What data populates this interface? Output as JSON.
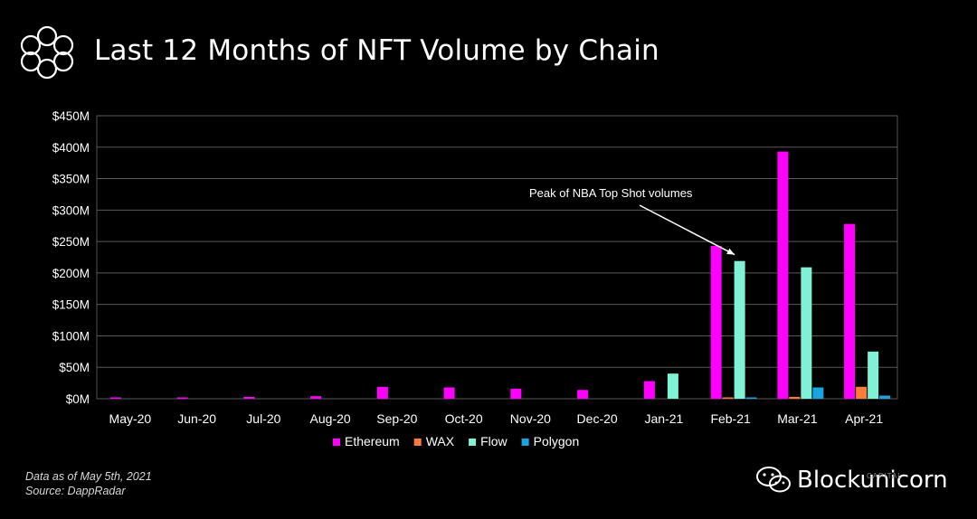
{
  "header": {
    "title": "Last 12 Months of NFT Volume by Chain"
  },
  "chart_data": {
    "type": "bar",
    "title": "Last 12 Months of NFT Volume by Chain",
    "categories": [
      "May-20",
      "Jun-20",
      "Jul-20",
      "Aug-20",
      "Sep-20",
      "Oct-20",
      "Nov-20",
      "Dec-20",
      "Jan-21",
      "Feb-21",
      "Mar-21",
      "Apr-21"
    ],
    "series": [
      {
        "name": "Ethereum",
        "color": "#ff00ff",
        "values": [
          1,
          1,
          3,
          4,
          19,
          18,
          16,
          14,
          28,
          243,
          393,
          278
        ]
      },
      {
        "name": "WAX",
        "color": "#ff7b39",
        "values": [
          0,
          0,
          0,
          0,
          0,
          0,
          0,
          0,
          0,
          2,
          3,
          19
        ]
      },
      {
        "name": "Flow",
        "color": "#7ff1d4",
        "values": [
          0,
          0,
          0,
          0,
          0,
          0,
          0,
          0,
          40,
          219,
          209,
          75
        ]
      },
      {
        "name": "Polygon",
        "color": "#1ba3e0",
        "values": [
          0,
          0,
          0,
          0,
          0,
          0,
          0,
          0,
          0,
          1,
          18,
          5
        ]
      }
    ],
    "ylim": [
      0,
      450
    ],
    "yticks": [
      "$0M",
      "$50M",
      "$100M",
      "$150M",
      "$200M",
      "$250M",
      "$300M",
      "$350M",
      "$400M",
      "$450M"
    ],
    "ytick_values": [
      0,
      50,
      100,
      150,
      200,
      250,
      300,
      350,
      400,
      450
    ],
    "grid": true,
    "legend": "bottom-center",
    "annotation": {
      "text": "Peak of NBA Top Shot volumes",
      "target_category": "Feb-21",
      "target_series": "Flow"
    }
  },
  "footer": {
    "date_note": "Data as of May 5th, 2021",
    "source_note": "Source: DappRadar"
  },
  "watermark": {
    "text": "Blockunicorn",
    "small_text": "CAPITAL"
  }
}
